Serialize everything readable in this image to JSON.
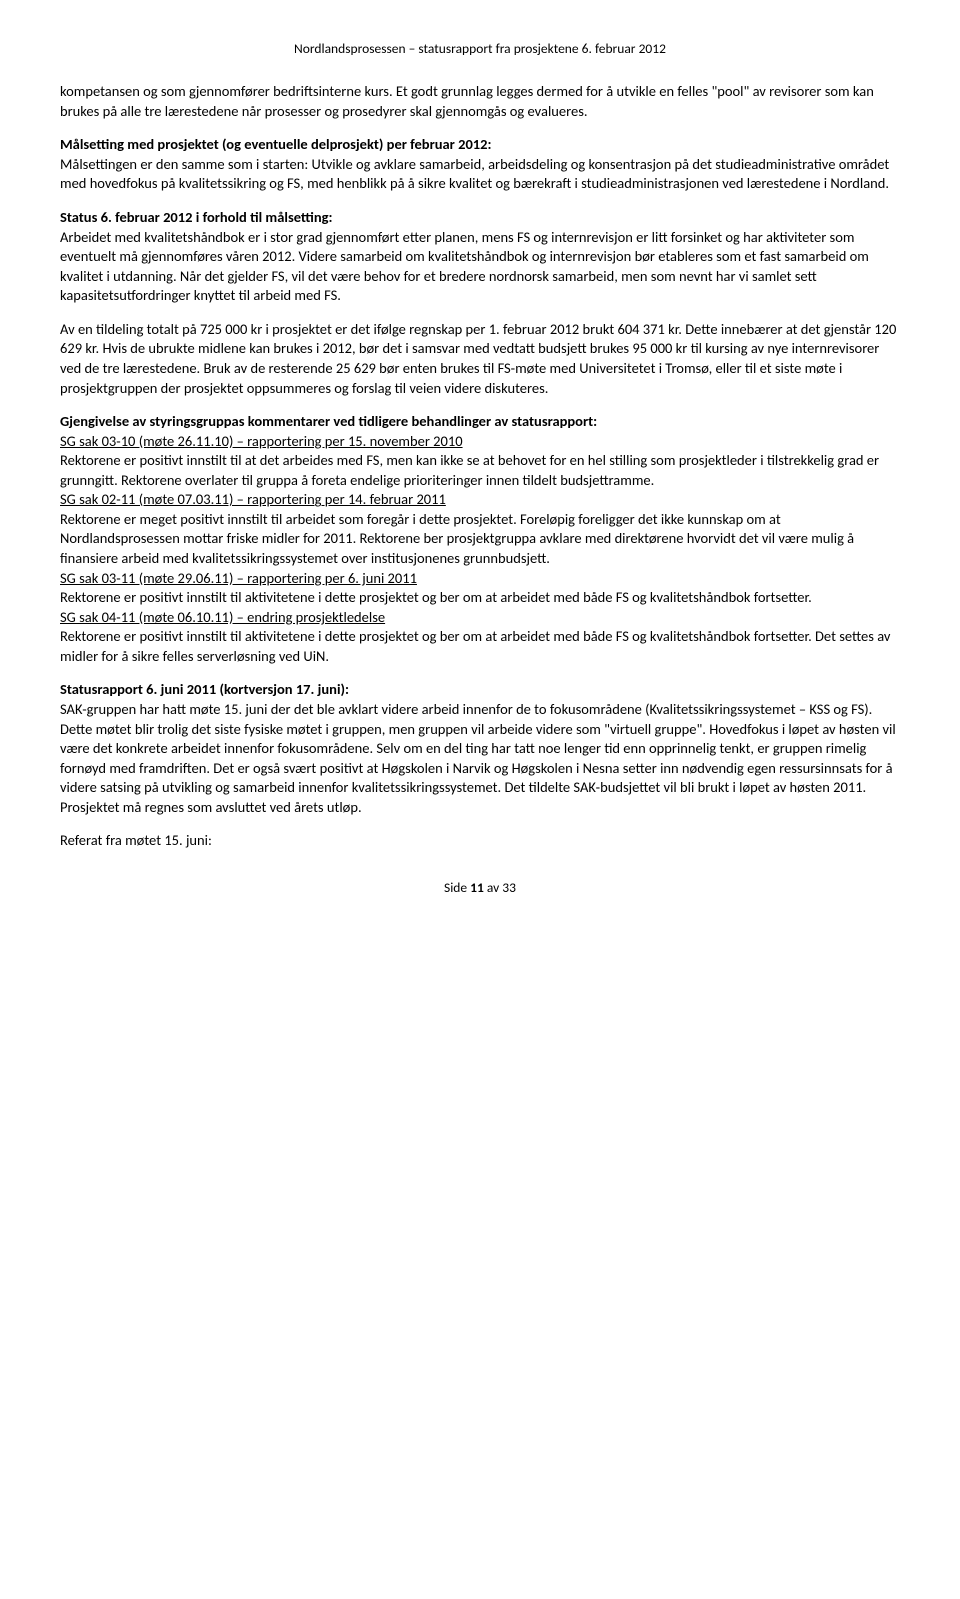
{
  "header": "Nordlandsprosessen – statusrapport fra prosjektene 6. februar 2012",
  "p1": "kompetansen og som gjennomfører bedriftsinterne kurs. Et godt grunnlag legges dermed for å utvikle en felles \"pool\" av revisorer som kan brukes på alle tre lærestedene når prosesser og prosedyrer skal gjennomgås og evalueres.",
  "p2_bold": "Målsetting med prosjektet (og eventuelle delprosjekt) per februar 2012:",
  "p2": "Målsettingen er den samme som i starten: Utvikle og avklare samarbeid, arbeidsdeling og konsentrasjon på det studieadministrative området med hovedfokus på kvalitetssikring og FS, med henblikk på å sikre kvalitet og bærekraft i studieadministrasjonen ved lærestedene i Nordland.",
  "p3_bold": "Status 6. februar 2012 i forhold til målsetting:",
  "p3": "Arbeidet med kvalitetshåndbok er i stor grad gjennomført etter planen, mens FS og internrevisjon er litt forsinket og har aktiviteter som eventuelt må gjennomføres våren 2012. Videre samarbeid om kvalitetshåndbok og internrevisjon bør etableres som et fast samarbeid om kvalitet i utdanning. Når det gjelder FS, vil det være behov for et bredere nordnorsk samarbeid, men som nevnt har vi samlet sett kapasitetsutfordringer knyttet til arbeid med FS.",
  "p4": "Av en tildeling totalt på 725 000 kr i prosjektet er det ifølge regnskap per 1. februar 2012 brukt 604 371 kr. Dette innebærer at det gjenstår 120 629 kr. Hvis de ubrukte midlene kan brukes i 2012, bør det i samsvar med vedtatt budsjett brukes 95 000 kr til kursing av nye internrevisorer ved de tre lærestedene. Bruk av de resterende 25 629 bør enten brukes til FS-møte med Universitetet i Tromsø, eller til et siste møte i prosjektgruppen der prosjektet oppsummeres og forslag til veien videre diskuteres.",
  "p5_bold": "Gjengivelse av styringsgruppas kommentarer ved tidligere behandlinger av statusrapport:",
  "sg1_u": "SG sak 03-10 (møte 26.11.10) – rapportering per 15. november 2010",
  "sg1": "Rektorene er positivt innstilt til at det arbeides med FS, men kan ikke se at behovet for en hel stilling som prosjektleder i tilstrekkelig grad er grunngitt. Rektorene overlater til gruppa å foreta endelige prioriteringer innen tildelt budsjettramme.",
  "sg2_u": "SG sak 02-11 (møte 07.03.11) – rapportering per 14. februar 2011",
  "sg2": "Rektorene er meget positivt innstilt til arbeidet som foregår i dette prosjektet. Foreløpig foreligger det ikke kunnskap om at Nordlandsprosessen mottar friske midler for 2011. Rektorene ber prosjektgruppa avklare med direktørene hvorvidt det vil være mulig å finansiere arbeid med kvalitetssikringssystemet over institusjonenes grunnbudsjett.",
  "sg3_u": "SG sak 03-11 (møte 29.06.11) – rapportering per 6. juni 2011",
  "sg3": "Rektorene er positivt innstilt til aktivitetene i dette prosjektet og ber om at arbeidet med både FS og kvalitetshåndbok fortsetter.",
  "sg4_u": "SG sak 04-11 (møte 06.10.11) – endring prosjektledelse",
  "sg4": "Rektorene er positivt innstilt til aktivitetene i dette prosjektet og ber om at arbeidet med både FS og kvalitetshåndbok fortsetter. Det settes av midler for å sikre felles serverløsning ved UiN.",
  "p6_bold": "Statusrapport 6. juni 2011 (kortversjon 17. juni):",
  "p6": "SAK-gruppen har hatt møte 15. juni der det ble avklart videre arbeid innenfor de to fokusområdene (Kvalitetssikringssystemet – KSS og FS). Dette møtet blir trolig det siste fysiske møtet i gruppen, men gruppen vil arbeide videre som \"virtuell gruppe\". Hovedfokus i løpet av høsten vil være det konkrete arbeidet innenfor fokusområdene. Selv om en del ting har tatt noe lenger tid enn opprinnelig tenkt, er gruppen rimelig fornøyd med framdriften. Det er også svært positivt at Høgskolen i Narvik og Høgskolen i Nesna setter inn nødvendig egen ressursinnsats for å videre satsing på utvikling og samarbeid innenfor kvalitetssikringssystemet. Det tildelte SAK-budsjettet vil bli brukt i løpet av høsten 2011. Prosjektet må regnes som avsluttet ved årets utløp.",
  "p7": "Referat fra møtet 15. juni:",
  "footer_label": "Side ",
  "footer_page": "11",
  "footer_suffix": " av 33"
}
